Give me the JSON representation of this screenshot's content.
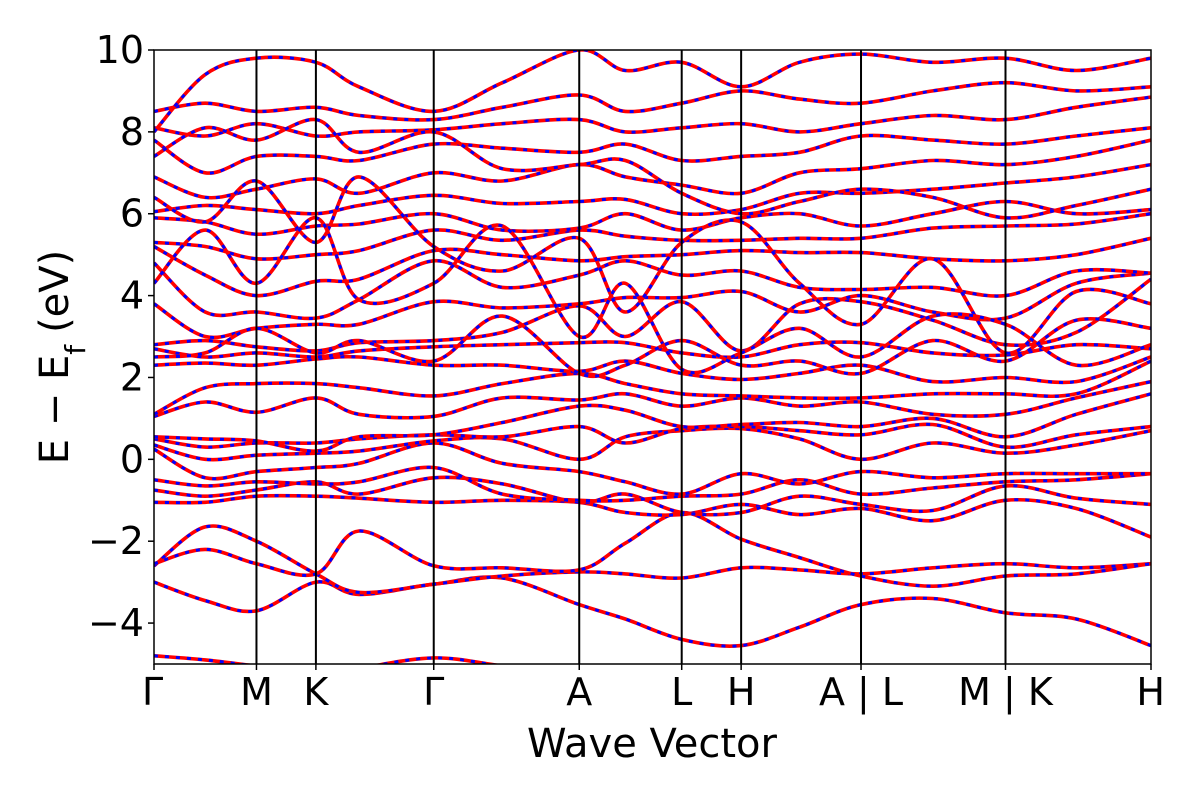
{
  "chart_data": {
    "type": "line",
    "title": "",
    "xlabel": "Wave Vector",
    "ylabel": "E − E",
    "ylabel_subscript": "f",
    "ylabel_unit": "(eV)",
    "ylim": [
      -5,
      10
    ],
    "yticks": [
      -4,
      -2,
      0,
      2,
      4,
      6,
      8,
      10
    ],
    "ytick_labels": [
      "−4",
      "−2",
      "0",
      "2",
      "4",
      "6",
      "8",
      "10"
    ],
    "xlim": [
      0,
      9.73
    ],
    "kpoints": [
      {
        "x": 0.0,
        "label": "Γ"
      },
      {
        "x": 1.0,
        "label": "M"
      },
      {
        "x": 1.58,
        "label": "K"
      },
      {
        "x": 2.73,
        "label": "Γ"
      },
      {
        "x": 4.15,
        "label": "A"
      },
      {
        "x": 5.15,
        "label": "L"
      },
      {
        "x": 5.73,
        "label": "H"
      },
      {
        "x": 6.9,
        "label": "A | L"
      },
      {
        "x": 8.31,
        "label": "M | K"
      },
      {
        "x": 9.73,
        "label": "H"
      }
    ],
    "grid": false,
    "legend": "none",
    "series_colors": {
      "red": "#ff0000",
      "blue": "#0000ff"
    },
    "bands": [
      {
        "x": [
          0,
          0.5,
          1.0,
          1.58,
          2.0,
          2.73,
          3.4,
          4.15,
          4.6,
          5.15,
          5.73,
          6.3,
          6.9,
          7.6,
          8.31,
          9.0,
          9.73
        ],
        "y": [
          -4.8,
          -4.9,
          -5.05,
          -5.2,
          -5.1,
          -4.85,
          -5.05,
          -5.3,
          -5.4,
          -5.5,
          -5.6,
          -5.5,
          -5.4,
          -5.5,
          -5.6,
          -5.7,
          -5.8
        ]
      },
      {
        "x": [
          0,
          0.5,
          1.0,
          1.58,
          2.0,
          2.73,
          3.4,
          4.15,
          4.6,
          5.15,
          5.73,
          6.3,
          6.9,
          7.6,
          8.31,
          9.0,
          9.73
        ],
        "y": [
          -3.0,
          -3.45,
          -3.7,
          -3.0,
          -3.3,
          -3.05,
          -2.9,
          -3.55,
          -3.9,
          -4.4,
          -4.55,
          -4.1,
          -3.55,
          -3.4,
          -3.75,
          -3.9,
          -4.55
        ]
      },
      {
        "x": [
          0,
          0.5,
          1.0,
          1.58,
          2.0,
          2.73,
          3.4,
          4.15,
          4.6,
          5.15,
          5.73,
          6.3,
          6.9,
          7.6,
          8.31,
          9.0,
          9.73
        ],
        "y": [
          -2.6,
          -1.65,
          -2.0,
          -2.8,
          -3.25,
          -3.05,
          -2.85,
          -2.75,
          -2.8,
          -2.9,
          -2.65,
          -2.7,
          -2.8,
          -2.65,
          -2.55,
          -2.65,
          -2.55
        ]
      },
      {
        "x": [
          0,
          0.5,
          1.0,
          1.58,
          2.0,
          2.73,
          3.4,
          4.15,
          4.6,
          5.15,
          5.73,
          6.3,
          6.9,
          7.6,
          8.31,
          9.0,
          9.73
        ],
        "y": [
          -2.55,
          -2.2,
          -2.55,
          -2.8,
          -1.75,
          -2.6,
          -2.65,
          -2.7,
          -2.05,
          -1.3,
          -1.95,
          -2.4,
          -2.85,
          -3.1,
          -2.85,
          -2.8,
          -2.55
        ]
      },
      {
        "x": [
          0,
          0.5,
          1.0,
          1.58,
          2.0,
          2.73,
          3.4,
          4.15,
          4.6,
          5.15,
          5.73,
          6.3,
          6.9,
          7.6,
          8.31,
          9.0,
          9.73
        ],
        "y": [
          -1.05,
          -1.05,
          -0.9,
          -0.9,
          -0.95,
          -1.05,
          -1.0,
          -1.05,
          -1.3,
          -1.35,
          -1.1,
          -1.35,
          -1.2,
          -1.5,
          -1.0,
          -1.2,
          -1.9
        ]
      },
      {
        "x": [
          0,
          0.5,
          1.0,
          1.58,
          2.0,
          2.73,
          3.4,
          4.15,
          4.6,
          5.15,
          5.73,
          6.3,
          6.9,
          7.6,
          8.31,
          9.0,
          9.73
        ],
        "y": [
          -0.75,
          -0.9,
          -0.75,
          -0.55,
          -0.85,
          -0.45,
          -0.6,
          -1.05,
          -0.85,
          -1.3,
          -1.3,
          -0.9,
          -1.1,
          -1.25,
          -0.65,
          -0.95,
          -1.1
        ]
      },
      {
        "x": [
          0,
          0.5,
          1.0,
          1.58,
          2.0,
          2.73,
          3.4,
          4.15,
          4.6,
          5.15,
          5.73,
          6.3,
          6.9,
          7.6,
          8.31,
          9.0,
          9.73
        ],
        "y": [
          -0.5,
          -0.65,
          -0.55,
          -0.6,
          -0.55,
          -0.2,
          -0.85,
          -1.0,
          -1.0,
          -0.9,
          -0.85,
          -0.5,
          -0.85,
          -0.7,
          -0.55,
          -0.5,
          -0.35
        ]
      },
      {
        "x": [
          0,
          0.5,
          1.0,
          1.58,
          2.0,
          2.73,
          3.4,
          4.15,
          4.6,
          5.15,
          5.73,
          6.3,
          6.9,
          7.6,
          8.31,
          9.0,
          9.73
        ],
        "y": [
          0.25,
          -0.45,
          -0.3,
          -0.2,
          -0.1,
          0.4,
          -0.1,
          -0.3,
          -0.55,
          -0.85,
          -0.35,
          -0.6,
          -0.3,
          -0.45,
          -0.35,
          -0.35,
          -0.35
        ]
      },
      {
        "x": [
          0,
          0.5,
          1.0,
          1.58,
          2.0,
          2.73,
          3.4,
          4.15,
          4.6,
          5.15,
          5.73,
          6.3,
          6.9,
          7.6,
          8.31,
          9.0,
          9.73
        ],
        "y": [
          0.35,
          0.0,
          0.1,
          0.15,
          0.2,
          0.45,
          0.5,
          0.0,
          0.55,
          0.7,
          0.75,
          0.5,
          0.0,
          0.4,
          0.15,
          0.35,
          0.7
        ]
      },
      {
        "x": [
          0,
          0.5,
          1.0,
          1.58,
          2.0,
          2.73,
          3.4,
          4.15,
          4.6,
          5.15,
          5.73,
          6.3,
          6.9,
          7.6,
          8.31,
          9.0,
          9.73
        ],
        "y": [
          0.5,
          0.3,
          0.4,
          0.4,
          0.5,
          0.6,
          0.55,
          0.8,
          0.4,
          0.75,
          0.8,
          0.7,
          0.6,
          0.85,
          0.3,
          0.6,
          0.8
        ]
      },
      {
        "x": [
          0,
          0.5,
          1.0,
          1.58,
          2.0,
          2.73,
          3.4,
          4.15,
          4.6,
          5.15,
          5.73,
          6.3,
          6.9,
          7.6,
          8.31,
          9.0,
          9.73
        ],
        "y": [
          0.55,
          0.5,
          0.45,
          0.2,
          0.55,
          0.6,
          0.9,
          1.3,
          1.2,
          0.8,
          0.85,
          0.9,
          0.8,
          1.0,
          0.55,
          1.1,
          1.6
        ]
      },
      {
        "x": [
          0,
          0.5,
          1.0,
          1.58,
          2.0,
          2.73,
          3.4,
          4.15,
          4.6,
          5.15,
          5.73,
          6.3,
          6.9,
          7.6,
          8.31,
          9.0,
          9.73
        ],
        "y": [
          1.05,
          1.4,
          1.15,
          1.5,
          1.1,
          1.05,
          1.5,
          1.45,
          1.6,
          1.3,
          1.5,
          1.3,
          1.4,
          1.1,
          1.1,
          1.5,
          1.9
        ]
      },
      {
        "x": [
          0,
          0.5,
          1.0,
          1.58,
          2.0,
          2.73,
          3.4,
          4.15,
          4.6,
          5.15,
          5.73,
          6.3,
          6.9,
          7.6,
          8.31,
          9.0,
          9.73
        ],
        "y": [
          1.1,
          1.75,
          1.85,
          1.85,
          1.75,
          1.55,
          1.85,
          2.1,
          1.85,
          1.6,
          1.55,
          1.5,
          1.5,
          1.6,
          1.6,
          1.6,
          2.4
        ]
      },
      {
        "x": [
          0,
          0.5,
          1.0,
          1.58,
          2.0,
          2.73,
          3.4,
          4.15,
          4.6,
          5.15,
          5.73,
          6.3,
          6.9,
          7.6,
          8.31,
          9.0,
          9.73
        ],
        "y": [
          2.3,
          2.35,
          2.3,
          2.45,
          2.5,
          2.3,
          2.3,
          2.15,
          2.4,
          2.1,
          1.95,
          2.1,
          2.3,
          1.9,
          2.0,
          1.9,
          2.5
        ]
      },
      {
        "x": [
          0,
          0.5,
          1.0,
          1.58,
          2.0,
          2.73,
          3.4,
          4.15,
          4.6,
          5.15,
          5.73,
          6.3,
          6.9,
          7.6,
          8.31,
          9.0,
          9.73
        ],
        "y": [
          2.7,
          2.5,
          2.6,
          2.5,
          2.65,
          2.75,
          2.8,
          2.85,
          2.85,
          2.6,
          2.5,
          2.8,
          2.85,
          2.6,
          2.55,
          2.8,
          2.7
        ]
      },
      {
        "x": [
          0,
          0.5,
          1.0,
          1.58,
          2.0,
          2.73,
          3.4,
          4.15,
          4.6,
          5.15,
          5.73,
          6.3,
          6.9,
          7.6,
          8.31,
          9.0,
          9.73
        ],
        "y": [
          2.8,
          2.9,
          2.75,
          2.65,
          2.85,
          2.9,
          3.1,
          3.75,
          3.0,
          3.85,
          2.65,
          3.8,
          3.85,
          3.4,
          2.8,
          3.1,
          4.4
        ]
      },
      {
        "x": [
          0,
          0.5,
          1.0,
          1.58,
          2.0,
          2.73,
          3.4,
          4.15,
          4.6,
          5.15,
          5.73,
          6.3,
          6.9,
          7.6,
          8.31,
          9.0,
          9.73
        ],
        "y": [
          3.8,
          3.0,
          3.2,
          3.3,
          3.3,
          3.85,
          3.7,
          3.8,
          3.95,
          3.95,
          4.1,
          3.6,
          4.0,
          3.6,
          3.45,
          4.3,
          4.55
        ]
      },
      {
        "x": [
          0,
          0.5,
          1.0,
          1.58,
          2.0,
          2.73,
          3.4,
          4.15,
          4.6,
          5.15,
          5.73,
          6.3,
          6.9,
          7.6,
          8.31,
          9.0,
          9.73
        ],
        "y": [
          4.8,
          3.6,
          3.6,
          3.45,
          3.9,
          4.85,
          4.2,
          4.5,
          4.85,
          4.5,
          4.6,
          4.2,
          4.15,
          4.2,
          4.0,
          4.6,
          4.55
        ]
      },
      {
        "x": [
          0,
          0.5,
          1.0,
          1.58,
          2.0,
          2.73,
          3.4,
          4.15,
          4.6,
          5.15,
          5.73,
          6.3,
          6.9,
          7.6,
          8.31,
          9.0,
          9.73
        ],
        "y": [
          5.2,
          4.5,
          4.0,
          4.35,
          4.4,
          5.1,
          5.0,
          4.85,
          4.95,
          5.0,
          5.1,
          5.05,
          5.05,
          4.9,
          4.85,
          5.0,
          5.4
        ]
      },
      {
        "x": [
          0,
          0.5,
          1.0,
          1.58,
          2.0,
          2.73,
          3.4,
          4.15,
          4.6,
          5.15,
          5.73,
          6.3,
          6.9,
          7.6,
          8.31,
          9.0,
          9.73
        ],
        "y": [
          5.3,
          5.2,
          4.9,
          5.0,
          5.1,
          5.6,
          5.35,
          5.6,
          5.45,
          5.35,
          5.35,
          5.4,
          5.4,
          5.65,
          5.7,
          5.75,
          6.0
        ]
      },
      {
        "x": [
          0,
          0.5,
          1.0,
          1.58,
          2.0,
          2.73,
          3.4,
          4.15,
          4.6,
          5.15,
          5.73,
          6.3,
          6.9,
          7.6,
          8.31,
          9.0,
          9.73
        ],
        "y": [
          5.9,
          5.8,
          5.5,
          5.7,
          5.75,
          6.0,
          5.6,
          5.65,
          6.0,
          5.6,
          5.9,
          6.0,
          5.7,
          6.0,
          6.3,
          6.0,
          6.1
        ]
      },
      {
        "x": [
          0,
          0.5,
          1.0,
          1.58,
          2.0,
          2.73,
          3.4,
          4.15,
          4.6,
          5.15,
          5.73,
          6.3,
          6.9,
          7.6,
          8.31,
          9.0,
          9.73
        ],
        "y": [
          6.05,
          6.2,
          6.1,
          6.0,
          6.2,
          6.45,
          6.25,
          6.3,
          6.35,
          6.0,
          6.1,
          6.5,
          6.5,
          6.6,
          6.75,
          6.9,
          7.2
        ]
      },
      {
        "x": [
          0,
          0.5,
          1.0,
          1.58,
          2.0,
          2.73,
          3.4,
          4.15,
          4.6,
          5.15,
          5.73,
          6.3,
          6.9,
          7.6,
          8.31,
          9.0,
          9.73
        ],
        "y": [
          6.9,
          6.4,
          6.6,
          6.85,
          6.5,
          7.0,
          6.8,
          7.2,
          6.9,
          6.7,
          6.5,
          7.0,
          7.1,
          7.3,
          7.2,
          7.4,
          7.8
        ]
      },
      {
        "x": [
          0,
          0.5,
          1.0,
          1.58,
          2.0,
          2.73,
          3.4,
          4.15,
          4.6,
          5.15,
          5.73,
          6.3,
          6.9,
          7.6,
          8.31,
          9.0,
          9.73
        ],
        "y": [
          7.8,
          7.0,
          7.4,
          7.4,
          7.3,
          7.7,
          7.6,
          7.5,
          7.7,
          7.3,
          7.4,
          7.5,
          7.9,
          7.8,
          7.7,
          7.9,
          8.1
        ]
      },
      {
        "x": [
          0,
          0.5,
          1.0,
          1.58,
          2.0,
          2.73,
          3.4,
          4.15,
          4.6,
          5.15,
          5.73,
          6.3,
          6.9,
          7.6,
          8.31,
          9.0,
          9.73
        ],
        "y": [
          8.1,
          7.9,
          8.2,
          7.9,
          8.0,
          8.05,
          8.2,
          8.3,
          8.0,
          8.1,
          8.2,
          8.0,
          8.2,
          8.4,
          8.3,
          8.6,
          8.85
        ]
      },
      {
        "x": [
          0,
          0.5,
          1.0,
          1.58,
          2.0,
          2.73,
          3.4,
          4.15,
          4.6,
          5.15,
          5.73,
          6.3,
          6.9,
          7.6,
          8.31,
          9.0,
          9.73
        ],
        "y": [
          8.5,
          8.7,
          8.5,
          8.6,
          8.4,
          8.3,
          8.6,
          8.9,
          8.5,
          8.7,
          9.0,
          8.8,
          8.7,
          9.0,
          9.2,
          9.0,
          9.1
        ]
      },
      {
        "x": [
          0,
          0.5,
          1.0,
          1.58,
          2.0,
          2.73,
          3.4,
          4.15,
          4.6,
          5.15,
          5.73,
          6.3,
          6.9,
          7.6,
          8.31,
          9.0,
          9.73
        ],
        "y": [
          8.0,
          9.4,
          9.8,
          9.7,
          9.1,
          8.5,
          9.2,
          10.0,
          9.5,
          9.7,
          9.1,
          9.7,
          9.9,
          9.7,
          9.8,
          9.5,
          9.8
        ]
      },
      {
        "x": [
          0,
          0.5,
          1.0,
          1.58,
          2.0,
          2.73,
          3.4,
          4.15,
          4.6,
          5.15,
          5.73,
          6.3,
          6.9,
          7.6,
          8.31,
          9.0,
          9.73
        ],
        "y": [
          7.4,
          8.1,
          7.8,
          8.3,
          7.5,
          8.0,
          7.1,
          7.2,
          7.3,
          6.5,
          6.0,
          6.3,
          6.6,
          6.4,
          5.9,
          6.2,
          6.6
        ]
      },
      {
        "x": [
          0,
          0.5,
          1.0,
          1.58,
          2.0,
          2.73,
          3.4,
          4.15,
          4.6,
          5.15,
          5.73,
          6.3,
          6.9,
          7.6,
          8.31,
          9.0,
          9.73
        ],
        "y": [
          6.4,
          5.8,
          6.8,
          5.3,
          6.9,
          5.2,
          4.6,
          5.4,
          3.6,
          5.3,
          5.8,
          4.3,
          3.3,
          4.9,
          2.6,
          4.1,
          3.8
        ]
      },
      {
        "x": [
          0,
          0.5,
          1.0,
          1.58,
          2.0,
          2.73,
          3.4,
          4.15,
          4.6,
          5.15,
          5.73,
          6.3,
          6.9,
          7.6,
          8.31,
          9.0,
          9.73
        ],
        "y": [
          4.3,
          5.6,
          4.3,
          5.9,
          3.9,
          4.3,
          5.7,
          3.0,
          4.3,
          2.2,
          2.6,
          3.2,
          2.5,
          3.5,
          3.3,
          2.3,
          2.8
        ]
      },
      {
        "x": [
          0,
          0.5,
          1.0,
          1.58,
          2.0,
          2.73,
          3.4,
          4.15,
          4.6,
          5.15,
          5.73,
          6.3,
          6.9,
          7.6,
          8.31,
          9.0,
          9.73
        ],
        "y": [
          2.5,
          2.6,
          3.2,
          2.6,
          2.9,
          2.4,
          3.5,
          2.1,
          2.3,
          2.9,
          2.3,
          2.4,
          2.1,
          2.9,
          2.4,
          3.4,
          3.2
        ]
      }
    ]
  }
}
